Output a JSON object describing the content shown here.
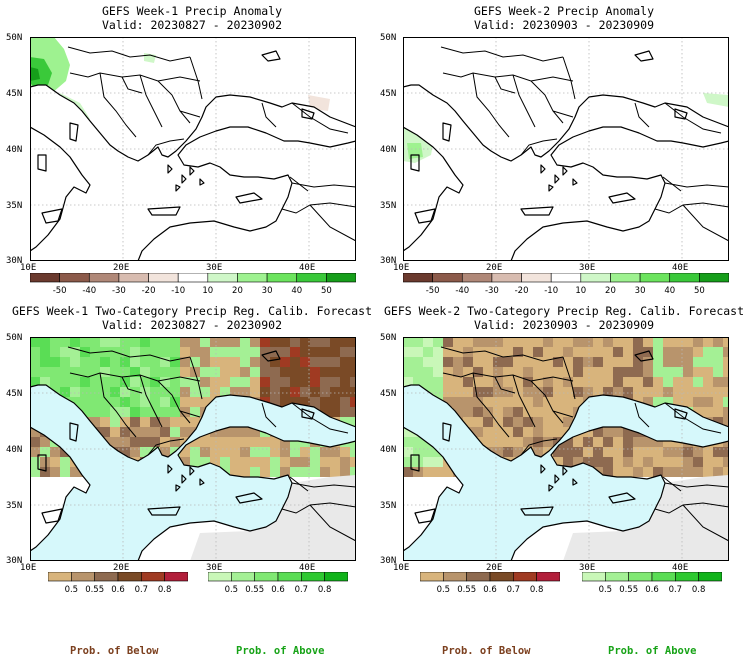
{
  "panels": [
    {
      "title": "GEFS Week-1 Precip Anomaly",
      "valid": "Valid: 20230827 - 20230902",
      "lat_labels": [
        "50N",
        "45N",
        "40N",
        "35N",
        "30N"
      ],
      "lon_labels": [
        "10E",
        "20E",
        "30E",
        "40E"
      ]
    },
    {
      "title": "GEFS Week-2 Precip Anomaly",
      "valid": "Valid: 20230903 - 20230909",
      "lat_labels": [
        "50N",
        "45N",
        "40N",
        "35N",
        "30N"
      ],
      "lon_labels": [
        "10E",
        "20E",
        "30E",
        "40E"
      ]
    },
    {
      "title": "GEFS Week-1 Two-Category Precip Reg. Calib. Forecast",
      "valid": "Valid: 20230827 - 20230902",
      "lat_labels": [
        "50N",
        "45N",
        "40N",
        "35N",
        "30N"
      ],
      "lon_labels": [
        "10E",
        "20E",
        "30E",
        "40E"
      ]
    },
    {
      "title": "GEFS Week-2 Two-Category Precip Reg. Calib. Forecast",
      "valid": "Valid: 20230903 - 20230909",
      "lat_labels": [
        "50N",
        "45N",
        "40N",
        "35N",
        "30N"
      ],
      "lon_labels": [
        "10E",
        "20E",
        "30E",
        "40E"
      ]
    }
  ],
  "anomaly_colorbar": {
    "labels": [
      "-50",
      "-40",
      "-30",
      "-20",
      "-10",
      "10",
      "20",
      "30",
      "40",
      "50"
    ],
    "colors": [
      "#6b3a2e",
      "#8c5a4a",
      "#b08878",
      "#d8bcb0",
      "#f2e4dc",
      "#ffffff",
      "#cff7c8",
      "#9ef290",
      "#6ce45e",
      "#3ac93a",
      "#169e1a"
    ]
  },
  "below_colorbar": {
    "labels": [
      "0.5",
      "0.55",
      "0.6",
      "0.7",
      "0.8"
    ],
    "colors": [
      "#d8b47c",
      "#b8946c",
      "#8e6a50",
      "#7a4a26",
      "#a03a22",
      "#b21e3a"
    ]
  },
  "above_colorbar": {
    "labels": [
      "0.5",
      "0.55",
      "0.6",
      "0.7",
      "0.8"
    ],
    "colors": [
      "#c9f7b8",
      "#a4f095",
      "#80e873",
      "#5add55",
      "#2ec931",
      "#10b31a"
    ]
  },
  "legend": {
    "below_left": "Prob. of Below",
    "above_left": "Prob. of Above",
    "below_right": "Prob. of Below",
    "above_right": "Prob. of Above"
  },
  "colors": {
    "sea": "#d6f8fb",
    "no_data": "#e9e9e9",
    "below_label": "#7b3f1e",
    "above_label": "#17a317"
  }
}
